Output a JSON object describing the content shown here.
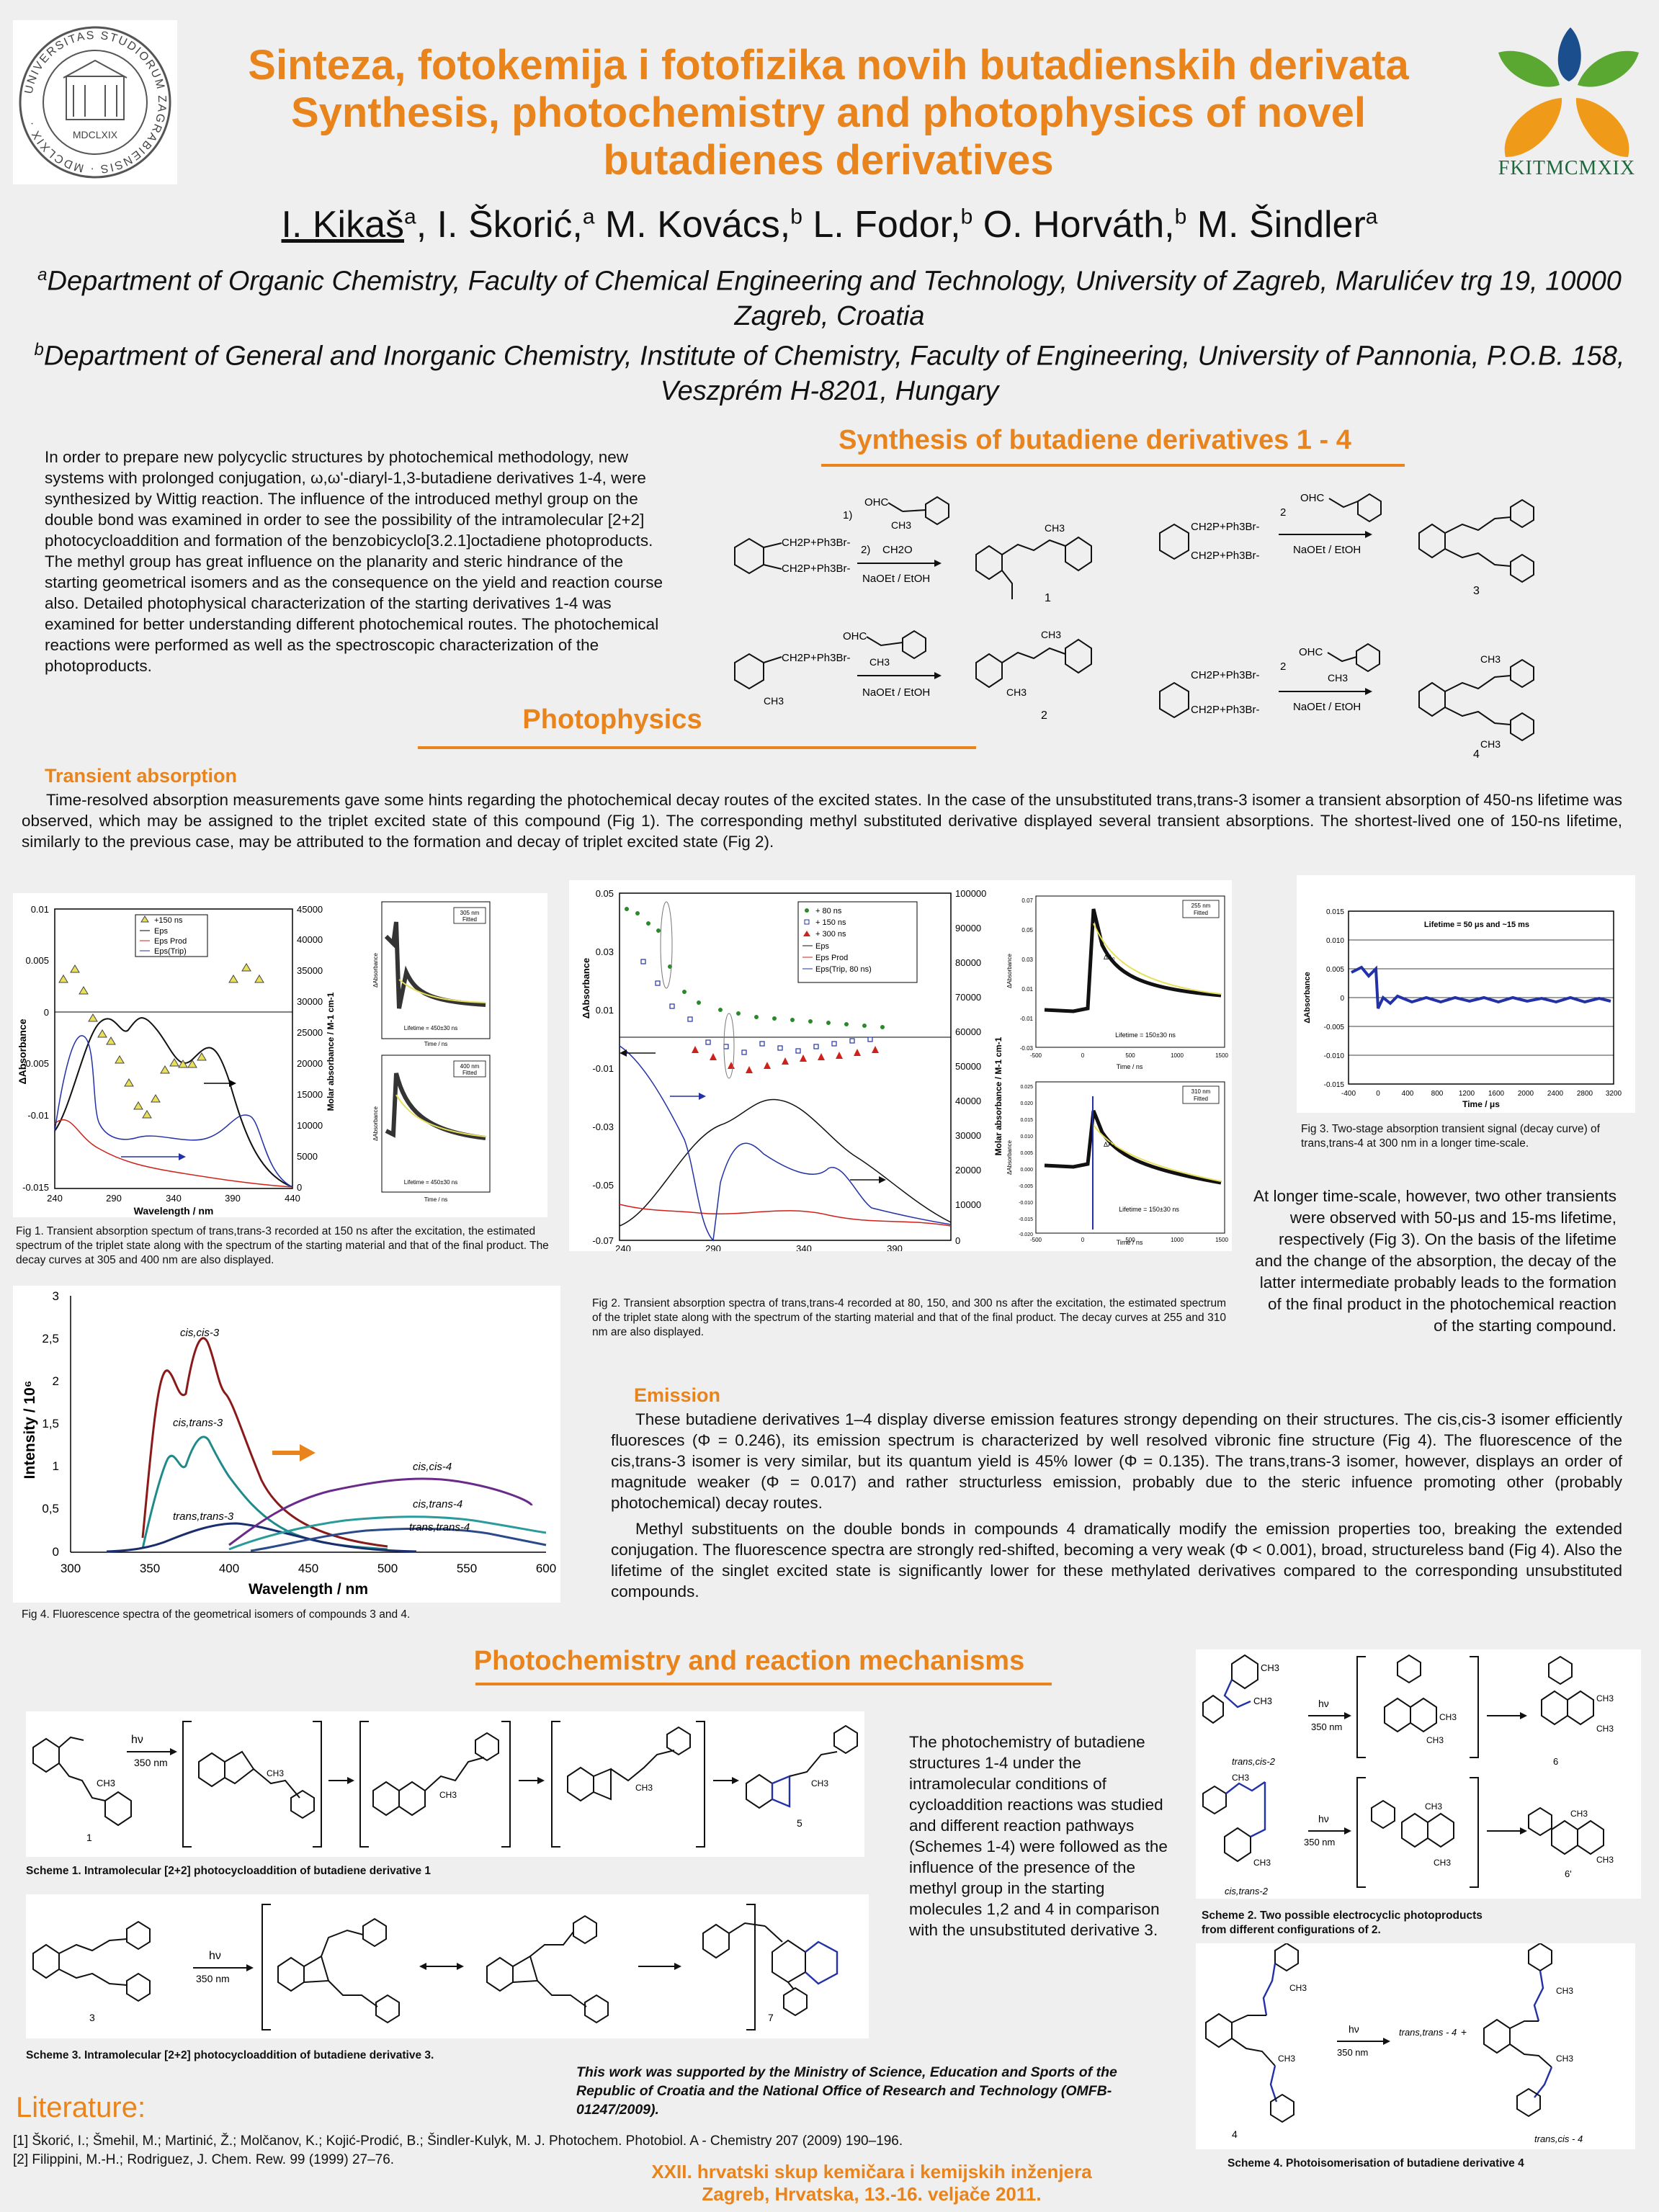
{
  "header": {
    "title_hr": "Sinteza, fotokemija i fotofizika novih butadienskih derivata",
    "title_en_1": "Synthesis, photochemistry and photophysics of novel",
    "title_en_2": "butadienes derivatives",
    "authors": "I. Kikaš, a I. Škorić, a M. Kovács, b L. Fodor, b O. Horváth, b M. Šindler a",
    "author_parts": [
      "I. Kikaš",
      "a",
      ", I. Škorić,",
      "a",
      " M. Kovács,",
      "b",
      " L. Fodor,",
      "b",
      " O. Horváth,",
      "b",
      " M. Šindler",
      "a"
    ],
    "affil_a_sup": "a",
    "affil_a": "Department of Organic Chemistry, Faculty of Chemical Engineering and Technology, University of Zagreb, Marulićev trg 19, 10000 Zagreb, Croatia",
    "affil_b_sup": "b",
    "affil_b": "Department of General and Inorganic Chemistry, Institute of Chemistry, Faculty of Engineering, University of Pannonia, P.O.B. 158, Veszprém H-8201, Hungary",
    "logo_left": "UNIVERSITAS STUDIORUM ZAGRABIENSIS MDCLXIX",
    "logo_right": "FKITMCMXIX"
  },
  "intro": "In order to prepare new polycyclic structures by photochemical methodology, new systems with prolonged conjugation, ω,ω'-diaryl-1,3-butadiene derivatives 1-4, were synthesized by Wittig reaction. The influence of the introduced methyl group on the double bond was examined in order to see the possibility of the intramolecular [2+2] photocycloaddition and formation of the benzobicyclo[3.2.1]octadiene photoproducts. The methyl group has great influence on the planarity and steric hindrance of the starting geometrical isomers and as the consequence on the yield and reaction course also. Detailed photophysical characterization of the starting derivatives 1-4 was examined for better understanding different photochemical routes. The photochemical reactions were performed as well as the spectroscopic characterization of the photoproducts.",
  "synthesis": {
    "heading": "Synthesis of butadiene derivatives 1 - 4",
    "reagent_1": "CH2P+Ph3Br-",
    "step1": "1)",
    "step2": "2)",
    "ch2o": "CH2O",
    "cond": "NaOEt / EtOH",
    "two": "2",
    "ohc": "OHC",
    "ch3": "CH3",
    "labels": [
      "1",
      "2",
      "3",
      "4"
    ]
  },
  "photophysics": {
    "heading": "Photophysics",
    "transient_head": "Transient absorption",
    "transient_text": "Time-resolved absorption measurements gave some hints regarding the photochemical decay routes of the excited states. In the case of the unsubstituted trans,trans-3 isomer a transient absorption of 450-ns lifetime was observed, which may be assigned to the triplet excited state of this compound (Fig 1). The corresponding methyl substituted derivative displayed several transient absorptions. The shortest-lived one of 150-ns lifetime, similarly to the previous case, may be attributed to the formation and decay of triplet excited state (Fig 2).",
    "fig1_caption": "Fig 1. Transient absorption spectum of trans,trans-3 recorded at 150 ns after the excitation, the estimated spectrum of the triplet state along with the spectrum of the starting material and that of the final product. The decay curves at 305 and 400 nm are also displayed.",
    "fig2_caption": "Fig 2. Transient absorption spectra of trans,trans-4 recorded at 80, 150, and 300 ns after the excitation, the estimated spectrum of the triplet state along with the spectrum of the starting material and that of the final product. The decay curves at 255 and 310 nm are also displayed.",
    "fig3_caption": "Fig 3. Two-stage absorption transient signal (decay curve) of trans,trans-4 at 300 nm in a longer time-scale.",
    "fig3_text": "At longer time-scale, however, two other transients were observed with 50-μs and 15-ms lifetime, respectively (Fig 3). On the basis of the lifetime and the change of the absorption, the decay of the latter intermediate probably leads to the formation of the final product in the photochemical reaction of the starting compound.",
    "fig4_caption": "Fig 4. Fluorescence spectra of the geometrical isomers of compounds 3 and 4.",
    "emission_head": "Emission",
    "emission_p1": "These butadiene derivatives 1–4 display diverse emission features strongy depending on their structures. The cis,cis-3 isomer efficiently fluoresces (Φ = 0.246), its emission spectrum is characterized by well resolved vibronic fine structure (Fig 4). The fluorescence of the cis,trans-3 isomer is very similar, but its quantum yield is 45% lower (Φ = 0.135). The trans,trans-3 isomer, however, displays an order of magnitude weaker (Φ = 0.017) and rather structurless emission, probably due to the steric infuence promoting other (probably photochemical) decay routes.",
    "emission_p2": "Methyl substituents on the double bonds in compounds 4 dramatically modify the emission properties too, breaking the extended conjugation. The fluorescence spectra are strongly red-shifted, becoming a very weak (Φ < 0.001), broad, structureless band (Fig 4). Also the lifetime of the singlet excited state is significantly lower for these methylated derivatives compared to the corresponding unsubstituted compounds."
  },
  "fig1": {
    "xlabel": "Wavelength / nm",
    "ylabel": "ΔAbsorbance",
    "y2label": "Molar absorbance / M-1 cm-1",
    "xticks": [
      "240",
      "290",
      "340",
      "390",
      "440"
    ],
    "yticks": [
      "0.01",
      "0.005",
      "0",
      "-0.005",
      "-0.01",
      "-0.015"
    ],
    "y2ticks": [
      "45000",
      "40000",
      "35000",
      "30000",
      "25000",
      "20000",
      "15000",
      "10000",
      "5000",
      "0"
    ],
    "legend": [
      "+150 ns",
      "Eps",
      "Eps Prod",
      "Eps(Trip)"
    ],
    "inset1_label": "305 nm",
    "inset1_sub": "Fitted",
    "inset1_life": "Lifetime = 450±30 ns",
    "inset2_label": "400 nm",
    "inset2_sub": "Fitted",
    "inset2_life": "Lifetime = 450±30 ns",
    "inset_xlabel": "Time / ns",
    "inset_ylabel": "ΔAbsorbance"
  },
  "fig2": {
    "xlabel": "Wavelength / nm",
    "ylabel": "ΔAbsorbance",
    "y2label": "Molar absorbance / M-1 cm-1",
    "xticks": [
      "240",
      "290",
      "340",
      "390"
    ],
    "yticks": [
      "0.05",
      "0.03",
      "0.01",
      "-0.01",
      "-0.03",
      "-0.05",
      "-0.07"
    ],
    "y2ticks": [
      "100000",
      "90000",
      "80000",
      "70000",
      "60000",
      "50000",
      "40000",
      "30000",
      "20000",
      "10000",
      "0"
    ],
    "legend": [
      "+ 80 ns",
      "+ 150 ns",
      "+ 300 ns",
      "Eps",
      "Eps Prod",
      "Eps(Trip, 80 ns)"
    ],
    "inset1_label": "255 nm",
    "inset1_sub": "Fitted",
    "inset1_life": "Lifetime = 150±30 ns",
    "inset2_label": "310 nm",
    "inset2_sub": "Fitted",
    "inset2_life": "Lifetime = 150±30 ns",
    "inset_xlabel": "Time / ns",
    "inset_ylabel": "ΔAbsorbance",
    "inset1_yticks": [
      "0.07",
      "0.05",
      "0.03",
      "0.01",
      "-0.01",
      "-0.03"
    ],
    "inset1_xticks": [
      "-500",
      "0",
      "500",
      "1000",
      "1500"
    ],
    "inset2_yticks": [
      "0.025",
      "0.020",
      "0.015",
      "0.010",
      "0.005",
      "0.000",
      "-0.005",
      "-0.010",
      "-0.015",
      "-0.020"
    ],
    "inset2_xticks": [
      "-500",
      "0",
      "500",
      "1000",
      "1500"
    ],
    "dA": "ΔA₀"
  },
  "fig3": {
    "title": "Lifetime = 50 μs and ~15 ms",
    "xlabel": "Time / μs",
    "ylabel": "ΔAbsorbance",
    "xticks": [
      "-400",
      "0",
      "400",
      "800",
      "1200",
      "1600",
      "2000",
      "2400",
      "2800",
      "3200"
    ],
    "yticks": [
      "0.015",
      "0.010",
      "0.005",
      "0",
      "-0.005",
      "-0.010",
      "-0.015"
    ]
  },
  "fig4": {
    "xlabel": "Wavelength / nm",
    "ylabel": "Intensity / 10⁶",
    "xticks": [
      "300",
      "350",
      "400",
      "450",
      "500",
      "550",
      "600"
    ],
    "yticks": [
      "3",
      "2,5",
      "2",
      "1,5",
      "1",
      "0,5",
      "0"
    ],
    "labels": [
      "cis,cis-3",
      "cis,trans-3",
      "trans,trans-3",
      "cis,cis-4",
      "cis,trans-4",
      "trans,trans-4"
    ]
  },
  "photochem": {
    "heading": "Photochemistry and reaction mechanisms",
    "text": "The photochemistry of butadiene structures 1-4 under the intramolecular conditions of cycloaddition reactions was studied and different reaction pathways (Schemes 1-4) were followed as the influence of the presence of the methyl group in the starting molecules 1,2 and 4 in comparison with the unsubstituted derivative 3.",
    "scheme1": "Scheme 1. Intramolecular [2+2] photocycloaddition of butadiene derivative 1",
    "scheme2": "Scheme 2. Two possible electrocyclic photoproducts from different configurations of 2.",
    "scheme3": "Scheme 3. Intramolecular [2+2] photocycloaddition of butadiene derivative 3.",
    "scheme4": "Scheme 4. Photoisomerisation of butadiene derivative 4",
    "hv": "hν",
    "nm350": "350 nm",
    "labels": {
      "s1_start": "1",
      "s1_end": "5",
      "s3_start": "3",
      "s3_end": "7",
      "s2_a": "trans,cis-2",
      "s2_b": "cis,trans-2",
      "s2_p1": "6",
      "s2_p2": "6'",
      "s4_start": "4",
      "s4_p1": "trans,trans - 4",
      "s4_plus": "+",
      "s4_p2": "trans,cis - 4"
    }
  },
  "funding": "This work was supported by the Ministry of Science, Education and Sports of the Republic of Croatia and the National Office of Research and Technology (OMFB-01247/2009).",
  "literature": {
    "heading": "Literature:",
    "refs": [
      "[1] Škorić, I.; Šmehil, M.; Martinić, Ž.; Molčanov, K.; Kojić-Prodić, B.; Šindler-Kulyk, M. J. Photochem. Photobiol. A - Chemistry 207 (2009) 190–196.",
      "[2] Filippini, M.-H.; Rodriguez, J. Chem. Rew. 99 (1999) 27–76."
    ]
  },
  "footer": {
    "line1": "XXII. hrvatski skup kemičara i kemijskih inženjera",
    "line2": "Zagreb, Hrvatska, 13.-16. veljače 2011."
  },
  "colors": {
    "accent": "#e9841c",
    "logo_blue": "#1b4e8c",
    "logo_green": "#5aa832",
    "logo_orange": "#f09a1a"
  }
}
